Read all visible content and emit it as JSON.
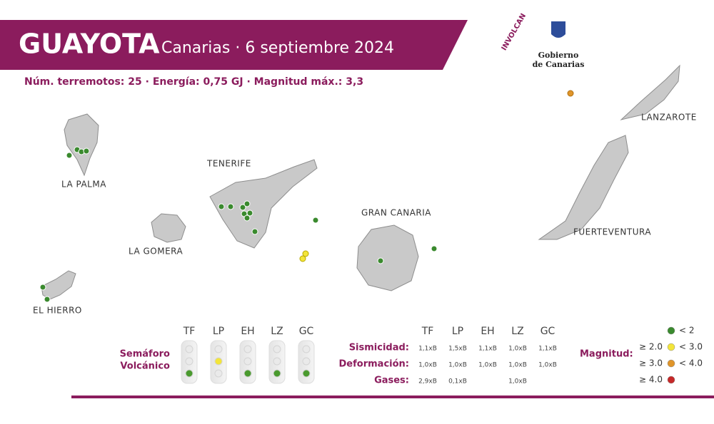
{
  "header": {
    "title": "GUAYOTA",
    "subtitle": "· Canarias · 6 septiembre 2024"
  },
  "summary": "Núm. terremotos: 25 · Energía: 0,75 GJ · Magnitud  máx.: 3,3",
  "logos": {
    "involcan": "INVOLCAN",
    "gobierno": [
      "Gobierno",
      "de Canarias"
    ]
  },
  "islands": [
    "LA PALMA",
    "TENERIFE",
    "LA GOMERA",
    "EL HIERRO",
    "GRAN CANARIA",
    "LANZAROTE",
    "FUERTEVENTURA"
  ],
  "semaphore": {
    "title": [
      "Semáforo",
      "Volcánico"
    ],
    "columns": [
      {
        "code": "TF",
        "level": "green"
      },
      {
        "code": "LP",
        "level": "yellow"
      },
      {
        "code": "EH",
        "level": "green"
      },
      {
        "code": "LZ",
        "level": "green"
      },
      {
        "code": "GC",
        "level": "green"
      }
    ]
  },
  "table": {
    "columns": [
      "TF",
      "LP",
      "EH",
      "LZ",
      "GC"
    ],
    "rows": [
      {
        "label": "Sismicidad:",
        "cells": [
          "1,1xB",
          "1,5xB",
          "1,1xB",
          "1,0xB",
          "1,1xB"
        ]
      },
      {
        "label": "Deformación:",
        "cells": [
          "1,0xB",
          "1,0xB",
          "1,0xB",
          "1,0xB",
          "1,0xB"
        ]
      },
      {
        "label": "Gases:",
        "cells": [
          "2,9xB",
          "0,1xB",
          null,
          "1,0xB",
          null
        ]
      }
    ]
  },
  "legend": {
    "title": "Magnitud:",
    "items": [
      {
        "color": "#3a8a2e",
        "upper": "< 2"
      },
      {
        "lower": "≥ 2.0",
        "color": "#f3e53a",
        "upper": "< 3.0"
      },
      {
        "lower": "≥ 3.0",
        "color": "#e0952a",
        "upper": "< 4.0"
      },
      {
        "lower": "≥ 4.0",
        "color": "#c62828"
      }
    ]
  }
}
